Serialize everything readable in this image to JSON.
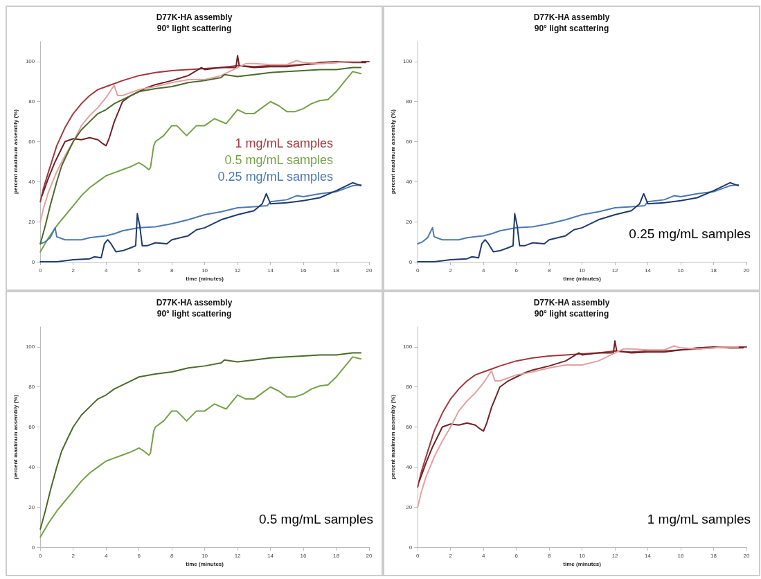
{
  "chart_data": [
    {
      "type": "line",
      "title": "D77K-HA assembly",
      "subtitle": "90° light scattering",
      "xlabel": "time (minutes)",
      "ylabel": "percent maximum assembly (%)",
      "xlim": [
        0,
        20
      ],
      "xticks": [
        0,
        2,
        4,
        6,
        8,
        10,
        12,
        14,
        16,
        18,
        20
      ],
      "ylim": [
        0,
        110
      ],
      "yticks": [
        0,
        20,
        40,
        60,
        80,
        100
      ],
      "grid": false,
      "annotations": [
        "1 mg/mL samples",
        "0.5 mg/mL samples",
        "0.25 mg/mL samples"
      ],
      "series": [
        {
          "color": "#a0383c",
          "x": [
            0,
            0.2,
            0.5,
            1,
            1.5,
            2,
            2.5,
            3,
            3.5,
            4,
            4.5,
            5,
            6,
            7,
            8,
            9,
            10,
            11,
            12,
            13,
            14,
            15,
            16,
            17,
            18,
            19,
            20
          ],
          "values": [
            30,
            37,
            45,
            58,
            67,
            74,
            79,
            83,
            86,
            87.5,
            89,
            90.5,
            93,
            94.5,
            95.5,
            96,
            96.5,
            97,
            98,
            97.5,
            98,
            98,
            98.5,
            99,
            99.5,
            100,
            100
          ]
        },
        {
          "color": "#74a046",
          "x": [
            0,
            0.5,
            1,
            1.5,
            2,
            2.5,
            3,
            3.5,
            4,
            4.5,
            5,
            5.5,
            6,
            6.3,
            6.6,
            6.7,
            6.9,
            7,
            7.5,
            8,
            8.3,
            8.9,
            9.5,
            10,
            10.6,
            11.3,
            12,
            12.5,
            13,
            13.5,
            14,
            14.5,
            15,
            15.5,
            16,
            16.5,
            17,
            17.5,
            18,
            18.5,
            19,
            19.5
          ],
          "values": [
            5,
            12,
            18,
            23,
            28,
            33,
            37,
            40,
            43,
            44.5,
            46,
            47.5,
            49.5,
            48,
            46,
            47,
            58,
            60,
            63,
            68,
            68,
            63,
            68,
            68,
            71.5,
            69,
            76,
            74,
            74,
            77,
            80,
            78,
            75,
            75,
            76.5,
            79,
            80.5,
            81,
            85,
            90,
            95,
            94
          ]
        },
        {
          "color": "#4a78b0",
          "x": [
            0,
            0.3,
            0.6,
            0.9,
            1,
            1.5,
            2,
            2.5,
            3,
            3.5,
            4,
            4.5,
            5,
            6,
            7,
            8,
            9,
            10,
            11,
            12,
            13,
            13.8,
            14,
            15,
            15.6,
            16,
            17,
            18,
            19,
            19.5
          ],
          "values": [
            9,
            10,
            12,
            17,
            12.5,
            11,
            11,
            11,
            12,
            12.5,
            13,
            14,
            15.5,
            17,
            17.5,
            19,
            21,
            23.5,
            25,
            27,
            27.5,
            28,
            30,
            31,
            33,
            32.5,
            34,
            35,
            38,
            38.5
          ]
        },
        {
          "color": "#6e2226",
          "x": [
            0.1,
            0.5,
            0.9,
            1.2,
            1.5,
            2,
            2.5,
            3,
            3.5,
            3.8,
            4,
            4.2,
            4.5,
            4.8,
            5,
            5.5,
            6,
            6.5,
            7,
            8,
            9,
            9.8,
            10,
            11,
            11.9,
            12,
            12.1,
            13,
            14,
            15,
            16,
            17,
            18,
            19,
            19.8
          ],
          "values": [
            33,
            42,
            50,
            55,
            60,
            61.5,
            61,
            62,
            61,
            59,
            58,
            62,
            70,
            76,
            80,
            83,
            85,
            87,
            88.5,
            90.5,
            93,
            97,
            96,
            97,
            97,
            103,
            98,
            97,
            97.5,
            97.5,
            98.5,
            99.5,
            100,
            99.5,
            99.5
          ]
        },
        {
          "color": "#e3a0a0",
          "x": [
            0,
            0.2,
            0.5,
            1,
            1.5,
            2,
            2.5,
            3,
            3.5,
            4,
            4.4,
            4.5,
            4.7,
            5,
            6,
            7,
            8,
            9,
            10,
            11,
            12,
            12.5,
            13,
            14,
            15,
            15.6,
            16,
            17,
            18,
            19,
            19.5
          ],
          "values": [
            20,
            27,
            35,
            45,
            53,
            60,
            68,
            73,
            77,
            82,
            87,
            88,
            83,
            83,
            86,
            87.5,
            89.5,
            91,
            91,
            93,
            97,
            99,
            99,
            98.5,
            98.5,
            100.5,
            99.5,
            99,
            99.5,
            100,
            100
          ]
        },
        {
          "color": "#4a6b2a",
          "x": [
            0,
            0.3,
            0.6,
            1,
            1.3,
            1.7,
            2,
            2.5,
            3,
            3.5,
            4,
            4.5,
            5,
            5.5,
            6,
            7,
            8,
            9,
            10,
            11,
            11.2,
            12,
            13,
            14,
            15,
            16,
            17,
            18,
            19,
            19.5
          ],
          "values": [
            9,
            18,
            28,
            40,
            48,
            55,
            60,
            66,
            70,
            74,
            76,
            79,
            81,
            83,
            85,
            86.5,
            87.5,
            89.5,
            90.5,
            92,
            93.5,
            92.5,
            93.5,
            94.5,
            95,
            95.5,
            96,
            96,
            97,
            97
          ]
        },
        {
          "color": "#1f3a6a",
          "x": [
            0,
            0.4,
            1,
            2,
            3,
            3.3,
            3.7,
            3.9,
            4.1,
            4.3,
            4.6,
            5,
            5.5,
            5.8,
            5.9,
            6.05,
            6.2,
            6.5,
            7,
            7.7,
            8,
            9,
            9.5,
            10,
            11,
            12,
            13,
            13.5,
            13.75,
            14,
            15,
            16,
            17,
            18,
            19,
            19.5
          ],
          "values": [
            0,
            0,
            0,
            1,
            1.5,
            2.5,
            2,
            9,
            11,
            9,
            5,
            5.5,
            7,
            8,
            24,
            18,
            8,
            8,
            9.5,
            9,
            11,
            13,
            16,
            17,
            21,
            23.5,
            25.5,
            29,
            34,
            29,
            29.5,
            30.5,
            32,
            35.5,
            39.5,
            38
          ]
        }
      ]
    },
    {
      "type": "line",
      "title": "D77K-HA assembly",
      "subtitle": "90° light scattering",
      "xlabel": "time (minutes)",
      "ylabel": "percent maximum assembly (%)",
      "xlim": [
        0,
        20
      ],
      "xticks": [
        0,
        2,
        4,
        6,
        8,
        10,
        12,
        14,
        16,
        18,
        20
      ],
      "ylim": [
        0,
        110
      ],
      "yticks": [
        0,
        20,
        40,
        60,
        80,
        100
      ],
      "grid": false,
      "annotations": [
        "0.25 mg/mL samples"
      ],
      "series": [
        {
          "color": "#4a78b0",
          "x": [
            0,
            0.3,
            0.6,
            0.9,
            1,
            1.5,
            2,
            2.5,
            3,
            3.5,
            4,
            4.5,
            5,
            6,
            7,
            8,
            9,
            10,
            11,
            12,
            13,
            13.8,
            14,
            15,
            15.6,
            16,
            17,
            18,
            19,
            19.5
          ],
          "values": [
            9,
            10,
            12,
            17,
            12.5,
            11,
            11,
            11,
            12,
            12.5,
            13,
            14,
            15.5,
            17,
            17.5,
            19,
            21,
            23.5,
            25,
            27,
            27.5,
            28,
            30,
            31,
            33,
            32.5,
            34,
            35,
            38,
            38.5
          ]
        },
        {
          "color": "#1f3a6a",
          "x": [
            0,
            0.4,
            1,
            2,
            3,
            3.3,
            3.7,
            3.9,
            4.1,
            4.3,
            4.6,
            5,
            5.5,
            5.8,
            5.9,
            6.05,
            6.2,
            6.5,
            7,
            7.7,
            8,
            9,
            9.5,
            10,
            11,
            12,
            13,
            13.5,
            13.75,
            14,
            15,
            16,
            17,
            18,
            19,
            19.5
          ],
          "values": [
            0,
            0,
            0,
            1,
            1.5,
            2.5,
            2,
            9,
            11,
            9,
            5,
            5.5,
            7,
            8,
            24,
            18,
            8,
            8,
            9.5,
            9,
            11,
            13,
            16,
            17,
            21,
            23.5,
            25.5,
            29,
            34,
            29,
            29.5,
            30.5,
            32,
            35.5,
            39.5,
            38
          ]
        }
      ]
    },
    {
      "type": "line",
      "title": "D77K-HA assembly",
      "subtitle": "90° light scattering",
      "xlabel": "time (minutes)",
      "ylabel": "percent maximum assembly (%)",
      "xlim": [
        0,
        20
      ],
      "xticks": [
        0,
        2,
        4,
        6,
        8,
        10,
        12,
        14,
        16,
        18,
        20
      ],
      "ylim": [
        0,
        110
      ],
      "yticks": [
        0,
        20,
        40,
        60,
        80,
        100
      ],
      "grid": false,
      "annotations": [
        "0.5 mg/mL samples"
      ],
      "series": [
        {
          "color": "#4a6b2a",
          "x": [
            0,
            0.3,
            0.6,
            1,
            1.3,
            1.7,
            2,
            2.5,
            3,
            3.5,
            4,
            4.5,
            5,
            5.5,
            6,
            7,
            8,
            9,
            10,
            11,
            11.2,
            12,
            13,
            14,
            15,
            16,
            17,
            18,
            19,
            19.5
          ],
          "values": [
            9,
            18,
            28,
            40,
            48,
            55,
            60,
            66,
            70,
            74,
            76,
            79,
            81,
            83,
            85,
            86.5,
            87.5,
            89.5,
            90.5,
            92,
            93.5,
            92.5,
            93.5,
            94.5,
            95,
            95.5,
            96,
            96,
            97,
            97
          ]
        },
        {
          "color": "#74a046",
          "x": [
            0,
            0.5,
            1,
            1.5,
            2,
            2.5,
            3,
            3.5,
            4,
            4.5,
            5,
            5.5,
            6,
            6.3,
            6.6,
            6.7,
            6.9,
            7,
            7.5,
            8,
            8.3,
            8.9,
            9.5,
            10,
            10.6,
            11.3,
            12,
            12.5,
            13,
            13.5,
            14,
            14.5,
            15,
            15.5,
            16,
            16.5,
            17,
            17.5,
            18,
            18.5,
            19,
            19.5
          ],
          "values": [
            5,
            12,
            18,
            23,
            28,
            33,
            37,
            40,
            43,
            44.5,
            46,
            47.5,
            49.5,
            48,
            46,
            47,
            58,
            60,
            63,
            68,
            68,
            63,
            68,
            68,
            71.5,
            69,
            76,
            74,
            74,
            77,
            80,
            78,
            75,
            75,
            76.5,
            79,
            80.5,
            81,
            85,
            90,
            95,
            94
          ]
        }
      ]
    },
    {
      "type": "line",
      "title": "D77K-HA assembly",
      "subtitle": "90° light scattering",
      "xlabel": "time (minutes)",
      "ylabel": "percent maximum assembly (%)",
      "xlim": [
        0,
        20
      ],
      "xticks": [
        0,
        2,
        4,
        6,
        8,
        10,
        12,
        14,
        16,
        18,
        20
      ],
      "ylim": [
        0,
        110
      ],
      "yticks": [
        0,
        20,
        40,
        60,
        80,
        100
      ],
      "grid": false,
      "annotations": [
        "1 mg/mL samples"
      ],
      "series": [
        {
          "color": "#a0383c",
          "x": [
            0,
            0.2,
            0.5,
            1,
            1.5,
            2,
            2.5,
            3,
            3.5,
            4,
            4.5,
            5,
            6,
            7,
            8,
            9,
            10,
            11,
            12,
            13,
            14,
            15,
            16,
            17,
            18,
            19,
            20
          ],
          "values": [
            30,
            37,
            45,
            58,
            67,
            74,
            79,
            83,
            86,
            87.5,
            89,
            90.5,
            93,
            94.5,
            95.5,
            96,
            96.5,
            97,
            98,
            97.5,
            98,
            98,
            98.5,
            99,
            99.5,
            100,
            100
          ]
        },
        {
          "color": "#6e2226",
          "x": [
            0.1,
            0.5,
            0.9,
            1.2,
            1.5,
            2,
            2.5,
            3,
            3.5,
            3.8,
            4,
            4.2,
            4.5,
            4.8,
            5,
            5.5,
            6,
            6.5,
            7,
            8,
            9,
            9.8,
            10,
            11,
            11.9,
            12,
            12.1,
            13,
            14,
            15,
            16,
            17,
            18,
            19,
            19.8
          ],
          "values": [
            33,
            42,
            50,
            55,
            60,
            61.5,
            61,
            62,
            61,
            59,
            58,
            62,
            70,
            76,
            80,
            83,
            85,
            87,
            88.5,
            90.5,
            93,
            97,
            96,
            97,
            97,
            103,
            98,
            97,
            97.5,
            97.5,
            98.5,
            99.5,
            100,
            99.5,
            99.5
          ]
        },
        {
          "color": "#e3a0a0",
          "x": [
            0,
            0.2,
            0.5,
            1,
            1.5,
            2,
            2.5,
            3,
            3.5,
            4,
            4.4,
            4.5,
            4.7,
            5,
            6,
            7,
            8,
            9,
            10,
            11,
            12,
            12.5,
            13,
            14,
            15,
            15.6,
            16,
            17,
            18,
            19,
            19.5
          ],
          "values": [
            20,
            27,
            35,
            45,
            53,
            60,
            68,
            73,
            77,
            82,
            87,
            88,
            83,
            83,
            86,
            87.5,
            89.5,
            91,
            91,
            93,
            97,
            99,
            99,
            98.5,
            98.5,
            100.5,
            99.5,
            99,
            99.5,
            100,
            100
          ]
        }
      ]
    }
  ]
}
